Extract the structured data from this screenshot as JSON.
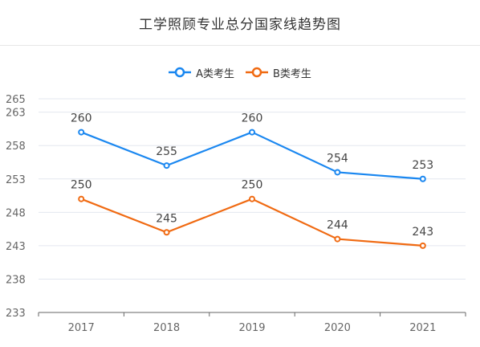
{
  "header": {
    "title": "工学照顾专业总分国家线趋势图"
  },
  "legend": {
    "items": [
      {
        "label": "A类考生",
        "color": "#1a87f0"
      },
      {
        "label": "B类考生",
        "color": "#f06a12"
      }
    ]
  },
  "chart_data": {
    "type": "line",
    "title": "工学照顾专业总分国家线趋势图",
    "xlabel": "",
    "ylabel": "",
    "categories": [
      "2017",
      "2018",
      "2019",
      "2020",
      "2021"
    ],
    "ylim": [
      233,
      265
    ],
    "yticks": [
      233,
      238,
      243,
      248,
      253,
      258,
      263,
      265
    ],
    "grid": true,
    "legend_position": "top-center",
    "series": [
      {
        "name": "A类考生",
        "color": "#1a87f0",
        "values": [
          260,
          255,
          260,
          254,
          253
        ]
      },
      {
        "name": "B类考生",
        "color": "#f06a12",
        "values": [
          250,
          245,
          250,
          244,
          243
        ]
      }
    ]
  }
}
